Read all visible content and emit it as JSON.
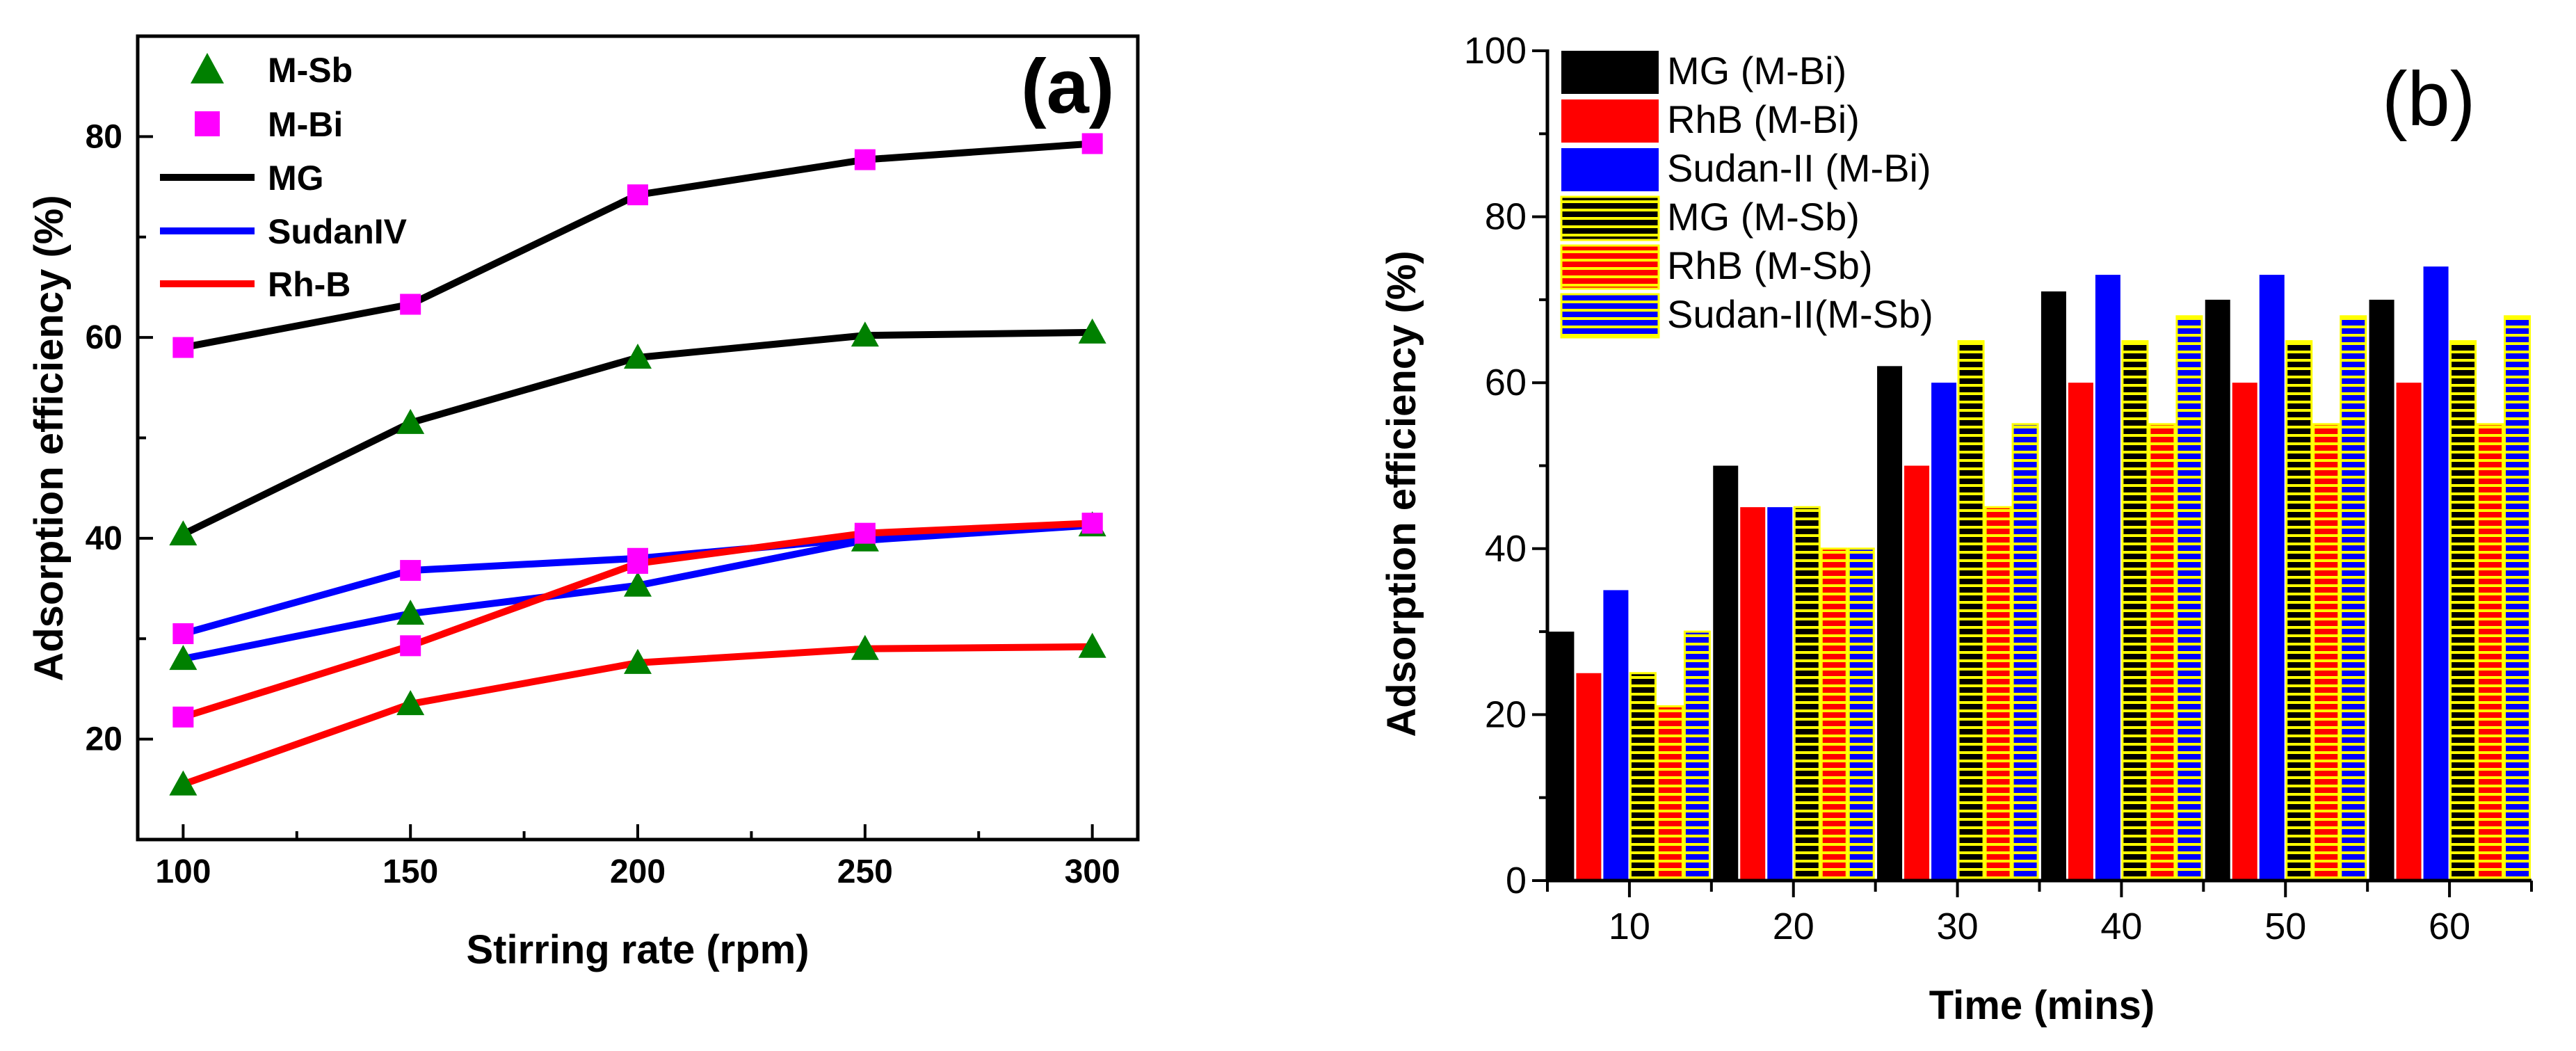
{
  "chart_data": [
    {
      "type": "line",
      "panel_label": "(a)",
      "xlabel": "Stirring rate (rpm)",
      "ylabel": "Adsorption efficiency (%)",
      "x": [
        100,
        150,
        200,
        250,
        300
      ],
      "xlim": [
        90,
        310
      ],
      "ylim": [
        10,
        90
      ],
      "xticks": [
        100,
        150,
        200,
        250,
        300
      ],
      "yticks": [
        20,
        40,
        60,
        80
      ],
      "series": [
        {
          "name": "MG (M-Bi)",
          "color": "#000000",
          "marker": "square",
          "values": [
            59,
            63.3,
            74.2,
            77.7,
            79.3
          ]
        },
        {
          "name": "MG (M-Sb)",
          "color": "#000000",
          "marker": "triangle",
          "values": [
            40.4,
            51.5,
            58,
            60.2,
            60.5
          ]
        },
        {
          "name": "SudanIV (M-Bi)",
          "color": "#0000ff",
          "marker": "square",
          "values": [
            30.5,
            36.8,
            38,
            40,
            41.5
          ]
        },
        {
          "name": "SudanIV (M-Sb)",
          "color": "#0000ff",
          "marker": "triangle",
          "values": [
            28,
            32.5,
            35.3,
            39.8,
            41.3
          ]
        },
        {
          "name": "Rh-B (M-Bi)",
          "color": "#ff0000",
          "marker": "square",
          "values": [
            22.2,
            29.3,
            37.5,
            40.5,
            41.5
          ]
        },
        {
          "name": "Rh-B (M-Sb)",
          "color": "#ff0000",
          "marker": "triangle",
          "values": [
            15.5,
            23.5,
            27.6,
            29,
            29.2
          ]
        }
      ],
      "legend": [
        {
          "label": "M-Sb",
          "kind": "marker",
          "marker": "triangle",
          "color": "#008000"
        },
        {
          "label": "M-Bi",
          "kind": "marker",
          "marker": "square",
          "color": "#ff00ff"
        },
        {
          "label": "MG",
          "kind": "line",
          "color": "#000000"
        },
        {
          "label": "SudanIV",
          "kind": "line",
          "color": "#0000ff"
        },
        {
          "label": "Rh-B",
          "kind": "line",
          "color": "#ff0000"
        }
      ],
      "legend_position": "top-left",
      "marker_colors": {
        "triangle": "#008000",
        "square": "#ff00ff"
      }
    },
    {
      "type": "bar",
      "panel_label": "(b)",
      "xlabel": "Time (mins)",
      "ylabel": "Adsorption efficiency (%)",
      "categories": [
        "10",
        "20",
        "30",
        "40",
        "50",
        "60"
      ],
      "ylim": [
        0,
        100
      ],
      "yticks": [
        0,
        20,
        40,
        60,
        80,
        100
      ],
      "series": [
        {
          "name": "MG  (M-Bi)",
          "color": "#000000",
          "pattern": "solid",
          "values": [
            30,
            50,
            62,
            71,
            70,
            70
          ]
        },
        {
          "name": "RhB (M-Bi)",
          "color": "#ff0000",
          "pattern": "solid",
          "values": [
            25,
            45,
            50,
            60,
            60,
            60
          ]
        },
        {
          "name": "Sudan-II (M-Bi)",
          "color": "#0000ff",
          "pattern": "solid",
          "values": [
            35,
            45,
            60,
            73,
            73,
            74
          ]
        },
        {
          "name": "MG (M-Sb)",
          "color": "#000000",
          "pattern": "hatched",
          "values": [
            25,
            45,
            65,
            65,
            65,
            65
          ]
        },
        {
          "name": "RhB (M-Sb)",
          "color": "#ff0000",
          "pattern": "hatched",
          "values": [
            21,
            40,
            45,
            55,
            55,
            55
          ]
        },
        {
          "name": "Sudan-II(M-Sb)",
          "color": "#0000ff",
          "pattern": "hatched",
          "values": [
            30,
            40,
            55,
            68,
            68,
            68
          ]
        }
      ],
      "hatch_color": "#ffff00",
      "legend_position": "top-left"
    }
  ]
}
